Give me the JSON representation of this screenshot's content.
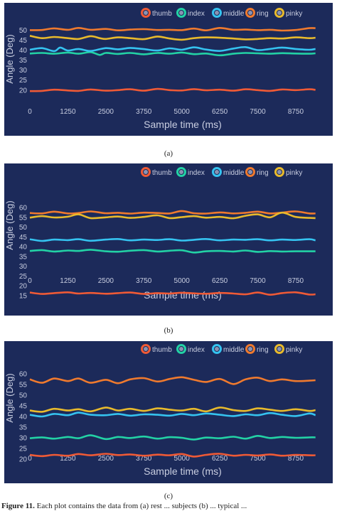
{
  "figure_note": {
    "label": "Figure 11.",
    "text": "Each plot contains the data from (a) rest ... subjects (b) ... typical ..."
  },
  "chart_data": [
    {
      "type": "line",
      "caption": "(a)",
      "xlabel": "Sample time (ms)",
      "ylabel": "Angle (Deg)",
      "x_ticks": [
        0,
        1250,
        2500,
        3750,
        5000,
        6250,
        7500,
        8750
      ],
      "y_ticks": [
        20,
        25,
        30,
        35,
        40,
        45,
        50
      ],
      "xlim": [
        0,
        9500
      ],
      "ylim": [
        16,
        53
      ],
      "legend_position": "top-right",
      "background": "#1c2a5a",
      "series": [
        {
          "name": "thumb",
          "color": "#ef5a36",
          "x": [
            0,
            400,
            800,
            1250,
            1600,
            2000,
            2500,
            2900,
            3300,
            3750,
            4200,
            4600,
            5000,
            5400,
            5800,
            6250,
            6700,
            7100,
            7500,
            7900,
            8300,
            8750,
            9200,
            9400
          ],
          "values": [
            19.5,
            19.6,
            20.2,
            19.8,
            19.6,
            20.3,
            19.7,
            20.0,
            20.4,
            19.7,
            20.6,
            20.0,
            19.8,
            20.5,
            19.9,
            20.2,
            19.7,
            20.4,
            20.0,
            19.6,
            20.3,
            20.0,
            20.4,
            20.1
          ]
        },
        {
          "name": "index",
          "color": "#23d2a5",
          "x": [
            0,
            400,
            800,
            1250,
            1600,
            2000,
            2300,
            2500,
            2900,
            3300,
            3750,
            4200,
            4600,
            5000,
            5400,
            5800,
            6250,
            6700,
            7100,
            7500,
            7900,
            8300,
            8750,
            9200,
            9400
          ],
          "values": [
            38.3,
            38.6,
            38.2,
            38.8,
            38.2,
            39.0,
            37.6,
            38.6,
            38.1,
            38.6,
            37.9,
            38.6,
            38.2,
            38.8,
            38.0,
            38.3,
            37.4,
            38.2,
            38.6,
            38.4,
            38.2,
            38.5,
            38.3,
            38.2,
            38.4
          ]
        },
        {
          "name": "middle",
          "color": "#35c3f0",
          "x": [
            0,
            400,
            800,
            1000,
            1250,
            1600,
            2000,
            2500,
            2900,
            3300,
            3750,
            4200,
            4600,
            5000,
            5400,
            5800,
            6250,
            6700,
            7100,
            7500,
            7900,
            8300,
            8750,
            9200,
            9400
          ],
          "values": [
            40.2,
            41.0,
            39.5,
            41.3,
            39.8,
            40.6,
            39.6,
            41.0,
            40.4,
            41.1,
            40.5,
            39.8,
            40.9,
            40.2,
            41.4,
            40.3,
            39.6,
            40.8,
            41.5,
            40.0,
            40.6,
            41.3,
            40.6,
            40.2,
            40.6
          ]
        },
        {
          "name": "ring",
          "color": "#ef7a2e",
          "x": [
            0,
            400,
            800,
            1250,
            1600,
            2000,
            2500,
            2900,
            3300,
            3750,
            4200,
            4600,
            5000,
            5400,
            5800,
            6250,
            6700,
            7100,
            7500,
            7900,
            8300,
            8750,
            9200,
            9400
          ],
          "values": [
            50.0,
            50.1,
            50.9,
            50.2,
            51.1,
            50.2,
            50.6,
            49.9,
            50.3,
            50.5,
            50.1,
            50.2,
            50.0,
            50.8,
            49.9,
            51.1,
            50.2,
            50.3,
            50.0,
            50.2,
            49.8,
            50.1,
            51.0,
            51.0
          ]
        },
        {
          "name": "pinky",
          "color": "#e8ba2c",
          "x": [
            0,
            400,
            800,
            1250,
            1600,
            2000,
            2300,
            2500,
            2900,
            3300,
            3750,
            4200,
            4600,
            5000,
            5400,
            5800,
            6250,
            6700,
            7100,
            7500,
            7900,
            8300,
            8750,
            9200,
            9400
          ],
          "values": [
            47.2,
            46.0,
            46.6,
            46.0,
            45.6,
            47.0,
            46.0,
            45.6,
            46.4,
            46.0,
            45.5,
            46.8,
            45.8,
            45.2,
            46.0,
            46.4,
            46.2,
            45.8,
            45.4,
            45.6,
            46.0,
            45.8,
            46.4,
            46.0,
            46.2
          ]
        }
      ]
    },
    {
      "type": "line",
      "caption": "(b)",
      "xlabel": "Sample time (ms)",
      "ylabel": "Angle (Deg)",
      "x_ticks": [
        0,
        1250,
        2500,
        3750,
        5000,
        6250,
        7500,
        8750
      ],
      "y_ticks": [
        15,
        20,
        25,
        30,
        35,
        40,
        45,
        50,
        55,
        60
      ],
      "xlim": [
        0,
        9500
      ],
      "ylim": [
        12,
        64
      ],
      "legend_position": "top-right",
      "background": "#1c2a5a",
      "series": [
        {
          "name": "thumb",
          "color": "#ef5a36",
          "x": [
            0,
            400,
            800,
            1250,
            1600,
            2000,
            2500,
            2900,
            3300,
            3750,
            4200,
            4600,
            5000,
            5400,
            5800,
            6250,
            6700,
            7100,
            7500,
            7900,
            8300,
            8750,
            9200,
            9400
          ],
          "values": [
            16.5,
            15.8,
            16.2,
            16.6,
            16.0,
            16.3,
            15.9,
            16.2,
            16.5,
            15.8,
            16.2,
            16.0,
            16.4,
            16.1,
            15.9,
            16.3,
            16.0,
            15.6,
            16.5,
            15.4,
            16.2,
            16.6,
            15.5,
            15.6
          ]
        },
        {
          "name": "index",
          "color": "#23d2a5",
          "x": [
            0,
            400,
            800,
            1250,
            1600,
            2000,
            2500,
            2900,
            3300,
            3750,
            4200,
            4600,
            5000,
            5400,
            5800,
            6250,
            6700,
            7100,
            7500,
            7900,
            8300,
            8750,
            9200,
            9400
          ],
          "values": [
            37.8,
            38.2,
            37.5,
            38.0,
            37.8,
            38.4,
            37.6,
            37.4,
            37.9,
            38.2,
            37.5,
            37.9,
            38.1,
            37.0,
            37.6,
            37.8,
            37.5,
            38.0,
            37.3,
            37.7,
            37.5,
            37.6,
            37.6,
            37.6
          ]
        },
        {
          "name": "middle",
          "color": "#35c3f0",
          "x": [
            0,
            400,
            800,
            1250,
            1600,
            2000,
            2500,
            2900,
            3300,
            3750,
            4200,
            4600,
            5000,
            5400,
            5800,
            6250,
            6700,
            7100,
            7500,
            7900,
            8300,
            8750,
            9200,
            9400
          ],
          "values": [
            43.8,
            42.9,
            43.6,
            43.3,
            43.8,
            43.0,
            43.6,
            43.9,
            43.2,
            43.6,
            43.4,
            43.8,
            43.1,
            43.5,
            43.9,
            43.2,
            43.6,
            43.5,
            43.8,
            43.2,
            43.6,
            43.4,
            43.8,
            43.2
          ]
        },
        {
          "name": "ring",
          "color": "#ef7a2e",
          "x": [
            0,
            400,
            800,
            1250,
            1600,
            2000,
            2500,
            2900,
            3300,
            3750,
            4200,
            4600,
            5000,
            5400,
            5800,
            6250,
            6700,
            7100,
            7500,
            7900,
            8300,
            8750,
            9200,
            9400
          ],
          "values": [
            57.2,
            57.0,
            57.9,
            57.0,
            57.2,
            58.0,
            57.1,
            57.3,
            56.9,
            57.4,
            57.2,
            57.0,
            58.2,
            57.1,
            56.9,
            57.5,
            57.0,
            57.3,
            57.9,
            57.0,
            57.4,
            58.0,
            57.0,
            57.0
          ]
        },
        {
          "name": "pinky",
          "color": "#e8ba2c",
          "x": [
            0,
            400,
            800,
            1250,
            1600,
            2000,
            2500,
            2900,
            3300,
            3750,
            4200,
            4600,
            5000,
            5400,
            5800,
            6250,
            6700,
            7100,
            7500,
            7900,
            8300,
            8750,
            9200,
            9400
          ],
          "values": [
            54.8,
            55.6,
            54.9,
            55.3,
            56.5,
            54.6,
            55.0,
            55.4,
            54.7,
            55.2,
            56.0,
            54.6,
            55.1,
            55.6,
            54.8,
            55.2,
            54.5,
            55.8,
            56.5,
            55.0,
            57.4,
            55.2,
            54.7,
            54.6
          ]
        }
      ]
    },
    {
      "type": "line",
      "caption": "(c)",
      "xlabel": "Sample time (ms)",
      "ylabel": "Angle (Deg)",
      "x_ticks": [
        0,
        1250,
        2500,
        3750,
        5000,
        6250,
        7500,
        8750
      ],
      "y_ticks": [
        20,
        25,
        30,
        35,
        40,
        45,
        50,
        55,
        60
      ],
      "xlim": [
        0,
        9500
      ],
      "ylim": [
        17,
        64
      ],
      "legend_position": "top-right",
      "background": "#1c2a5a",
      "series": [
        {
          "name": "thumb",
          "color": "#ef5a36",
          "x": [
            0,
            400,
            800,
            1250,
            1600,
            2000,
            2500,
            2900,
            3300,
            3750,
            4200,
            4600,
            5000,
            5400,
            5800,
            6250,
            6700,
            7100,
            7500,
            7900,
            8300,
            8750,
            9200,
            9400
          ],
          "values": [
            22.0,
            21.4,
            22.0,
            21.6,
            22.4,
            21.8,
            22.5,
            21.9,
            22.2,
            21.6,
            22.1,
            21.8,
            22.4,
            21.2,
            22.0,
            22.5,
            21.6,
            22.0,
            21.7,
            22.2,
            21.6,
            22.0,
            21.8,
            21.8
          ]
        },
        {
          "name": "index",
          "color": "#23d2a5",
          "x": [
            0,
            400,
            800,
            1250,
            1600,
            2000,
            2500,
            2900,
            3300,
            3750,
            4200,
            4600,
            5000,
            5400,
            5800,
            6250,
            6700,
            7100,
            7500,
            7900,
            8300,
            8750,
            9200,
            9400
          ],
          "values": [
            29.8,
            30.2,
            29.6,
            30.4,
            29.8,
            31.2,
            29.4,
            30.4,
            29.9,
            30.6,
            29.6,
            30.3,
            30.0,
            29.2,
            30.1,
            29.8,
            30.5,
            29.6,
            30.9,
            29.9,
            30.4,
            30.0,
            30.2,
            30.2
          ]
        },
        {
          "name": "middle",
          "color": "#35c3f0",
          "x": [
            0,
            400,
            800,
            1250,
            1600,
            2000,
            2500,
            2900,
            3300,
            3750,
            4200,
            4600,
            5000,
            5400,
            5800,
            6250,
            6700,
            7100,
            7500,
            7900,
            8300,
            8750,
            9200,
            9400
          ],
          "values": [
            40.8,
            40.0,
            41.2,
            40.6,
            41.8,
            40.8,
            40.6,
            41.2,
            40.4,
            41.0,
            40.8,
            40.4,
            41.2,
            40.6,
            41.4,
            40.8,
            40.2,
            41.0,
            40.6,
            41.6,
            40.8,
            40.2,
            41.4,
            40.6
          ]
        },
        {
          "name": "ring",
          "color": "#ef7a2e",
          "x": [
            0,
            400,
            800,
            1250,
            1600,
            2000,
            2500,
            2900,
            3300,
            3750,
            4200,
            4600,
            5000,
            5400,
            5800,
            6250,
            6700,
            7100,
            7500,
            7900,
            8300,
            8750,
            9200,
            9400
          ],
          "values": [
            57.4,
            55.8,
            57.8,
            56.6,
            57.8,
            55.8,
            57.2,
            55.6,
            57.4,
            58.0,
            56.4,
            57.6,
            58.4,
            57.2,
            56.2,
            57.6,
            55.2,
            57.4,
            58.2,
            56.6,
            57.4,
            56.6,
            56.8,
            57.0
          ]
        },
        {
          "name": "pinky",
          "color": "#e8ba2c",
          "x": [
            0,
            400,
            800,
            1250,
            1600,
            2000,
            2500,
            2900,
            3300,
            3750,
            4200,
            4600,
            5000,
            5400,
            5800,
            6250,
            6700,
            7100,
            7500,
            7900,
            8300,
            8750,
            9200,
            9400
          ],
          "values": [
            42.8,
            42.2,
            43.6,
            42.8,
            43.4,
            42.4,
            44.2,
            42.8,
            43.6,
            42.6,
            43.8,
            43.2,
            42.8,
            43.6,
            42.4,
            44.2,
            43.0,
            42.6,
            43.8,
            43.2,
            42.6,
            43.4,
            42.6,
            43.0
          ]
        }
      ]
    }
  ]
}
